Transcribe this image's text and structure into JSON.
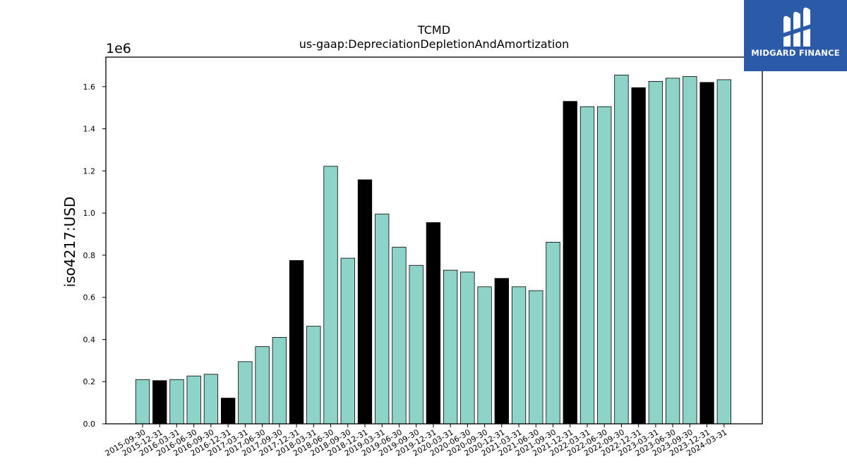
{
  "chart_data": {
    "type": "bar",
    "title": "TCMD",
    "subtitle": "us-gaap:DepreciationDepletionAndAmortization",
    "ylabel": "iso4217:USD",
    "xlabel": "",
    "y_multiplier_label": "1e6",
    "y_scale": 1000000,
    "ylim": [
      0,
      1.74
    ],
    "yticks": [
      0.0,
      0.2,
      0.4,
      0.6,
      0.8,
      1.0,
      1.2,
      1.4,
      1.6
    ],
    "ytick_labels": [
      "0.0",
      "0.2",
      "0.4",
      "0.6",
      "0.8",
      "1.0",
      "1.2",
      "1.4",
      "1.6"
    ],
    "grid": false,
    "categories": [
      "2015-09-30",
      "2015-12-31",
      "2016-03-31",
      "2016-06-30",
      "2016-09-30",
      "2016-12-31",
      "2017-03-31",
      "2017-06-30",
      "2017-09-30",
      "2017-12-31",
      "2018-03-31",
      "2018-06-30",
      "2018-09-30",
      "2018-12-31",
      "2019-03-31",
      "2019-06-30",
      "2019-09-30",
      "2019-12-31",
      "2020-03-31",
      "2020-06-30",
      "2020-09-30",
      "2020-12-31",
      "2021-03-31",
      "2021-06-30",
      "2021-09-30",
      "2021-12-31",
      "2022-03-31",
      "2022-06-30",
      "2022-09-30",
      "2022-12-31",
      "2023-03-31",
      "2023-06-30",
      "2023-09-30",
      "2023-12-31",
      "2024-03-31"
    ],
    "values": [
      0.21,
      0.205,
      0.21,
      0.227,
      0.235,
      0.122,
      0.295,
      0.366,
      0.41,
      0.775,
      0.463,
      1.222,
      0.786,
      1.158,
      0.995,
      0.838,
      0.752,
      0.955,
      0.729,
      0.72,
      0.65,
      0.69,
      0.65,
      0.632,
      0.862,
      1.53,
      1.505,
      1.505,
      1.655,
      1.595,
      1.625,
      1.64,
      1.648,
      1.62,
      1.633
    ],
    "fiscal_year_end": [
      false,
      true,
      false,
      false,
      false,
      true,
      false,
      false,
      false,
      true,
      false,
      false,
      false,
      true,
      false,
      false,
      false,
      true,
      false,
      false,
      false,
      true,
      false,
      false,
      false,
      true,
      false,
      false,
      false,
      true,
      false,
      false,
      false,
      true,
      false
    ],
    "colors": {
      "quarter": "#8dd3c7",
      "year_end": "#000000",
      "edge": "#000000"
    }
  },
  "logo": {
    "text": "MIDGARD FINANCE",
    "background": "#2b5aa8"
  }
}
